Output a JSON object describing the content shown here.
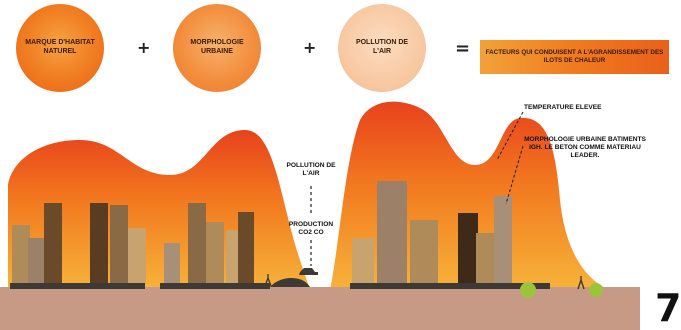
{
  "equation": {
    "circle1": "MARQUE D'HABITAT NATUREL",
    "plus1": "+",
    "circle2": "MORPHOLOGIE URBAINE",
    "plus2": "+",
    "circle3": "POLLUTION DE L'AIR",
    "equals": "=",
    "result": "FACTEURS QUI CONDUISENT A L'AGRANDISSEMENT DES ILOTS DE CHALEUR"
  },
  "annotations": {
    "pollution": "POLLUTION DE L'AIR",
    "production": "PRODUCTION CO2 CO",
    "temperature": "TEMPERATURE ELEVEE",
    "morphology": "MORPHOLOGIE URBAINE BATIMENTS IGH. LE BETON COMME MATERIAU LEADER."
  },
  "page_number": "7",
  "colors": {
    "heat_top": "#e8421c",
    "heat_mid": "#f27a1f",
    "heat_low": "#f6b33a",
    "ground": "#c79a86",
    "circle_orange": "#f07c20",
    "circle_light": "#f8c9a3"
  }
}
